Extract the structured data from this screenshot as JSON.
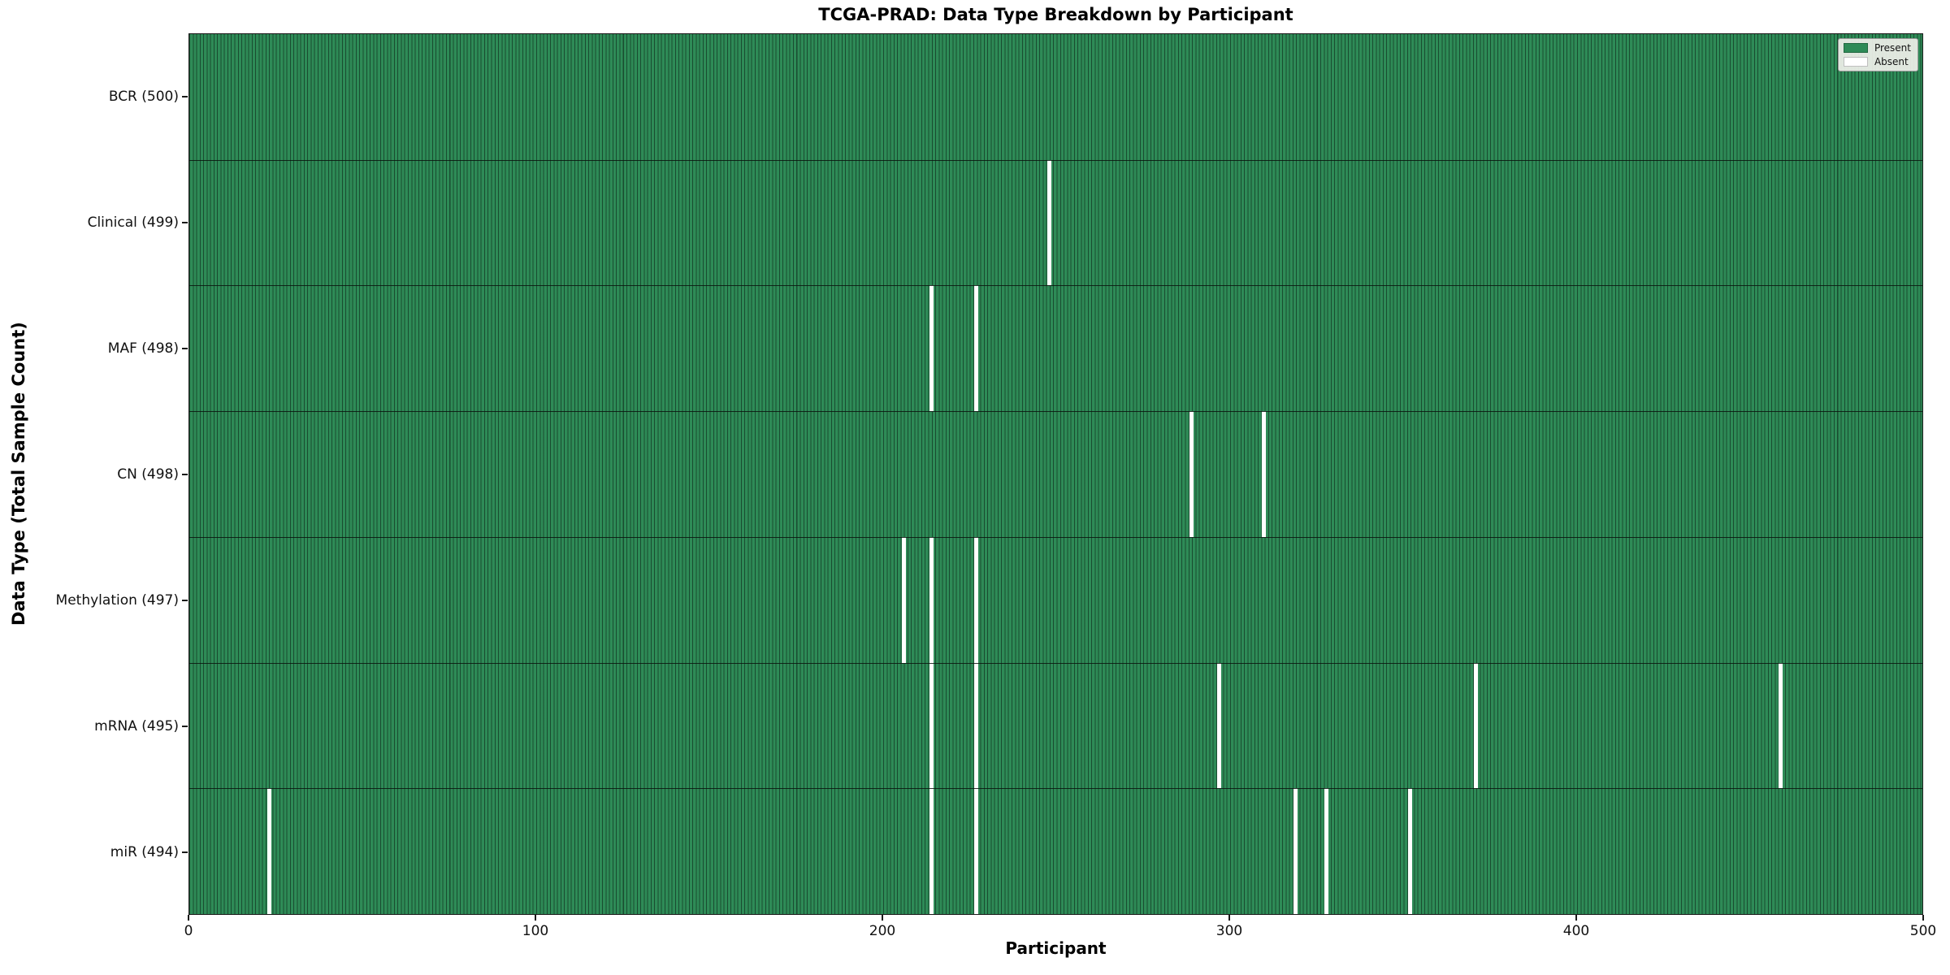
{
  "chart_data": {
    "type": "heatmap",
    "title": "TCGA-PRAD: Data Type Breakdown by Participant",
    "xlabel": "Participant",
    "ylabel": "Data Type (Total Sample Count)",
    "xlim": [
      0,
      500
    ],
    "n_participants": 500,
    "x_ticks": [
      0,
      100,
      200,
      300,
      400,
      500
    ],
    "grid": false,
    "legend_position": "upper right",
    "legend": [
      {
        "label": "Present",
        "color": "#2e8b57"
      },
      {
        "label": "Absent",
        "color": "#ffffff"
      }
    ],
    "colors": {
      "present": "#2e8b57",
      "absent": "#ffffff",
      "bar_edge": "#0a180f",
      "legend_bg": "#f0f0ea"
    },
    "rows": [
      {
        "label": "BCR (500)",
        "total": 500,
        "absent_participants": []
      },
      {
        "label": "Clinical (499)",
        "total": 499,
        "absent_participants": [
          248
        ]
      },
      {
        "label": "MAF (498)",
        "total": 498,
        "absent_participants": [
          214,
          227
        ]
      },
      {
        "label": "CN (498)",
        "total": 498,
        "absent_participants": [
          289,
          310
        ]
      },
      {
        "label": "Methylation (497)",
        "total": 497,
        "absent_participants": [
          206,
          214,
          227
        ]
      },
      {
        "label": "mRNA (495)",
        "total": 495,
        "absent_participants": [
          214,
          227,
          297,
          371,
          459
        ]
      },
      {
        "label": "miR (494)",
        "total": 494,
        "absent_participants": [
          23,
          214,
          227,
          319,
          328,
          352
        ]
      }
    ]
  }
}
